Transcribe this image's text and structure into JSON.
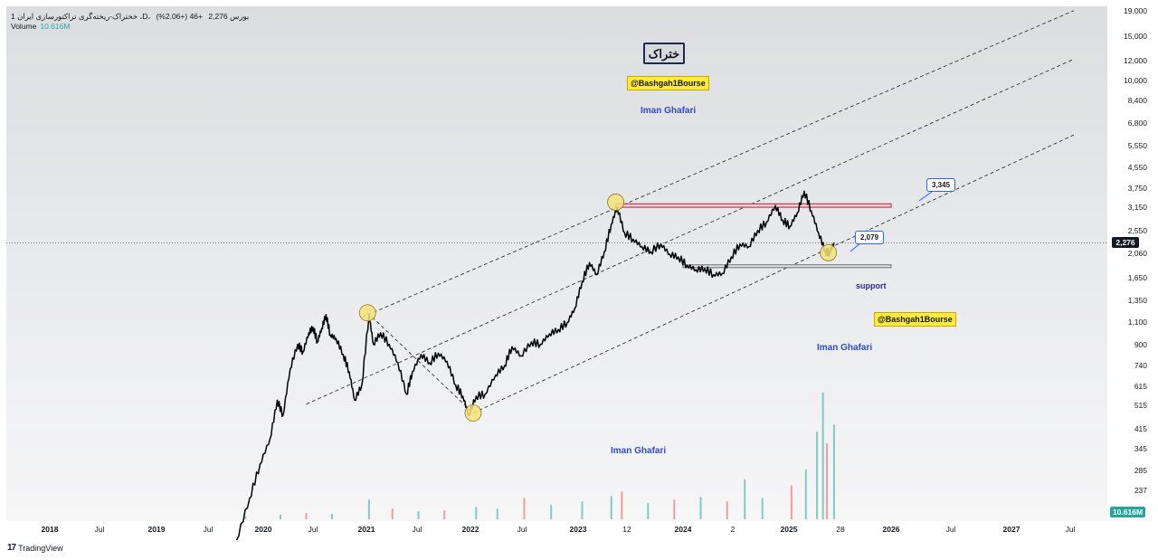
{
  "legend": {
    "symbol_line": "1 خختراک-ریخته‌گری تراکتورسازی ایران ،D، بورس",
    "price": "2,276",
    "change": "+46 (+2.06%)",
    "volume_label": "Volume",
    "volume_value": "10.616M"
  },
  "annotations": {
    "title_badge": "ختراک",
    "channel_tag": "@Bashgah1Bourse",
    "author": "Iman Ghafari",
    "support_label": "support",
    "callout_upper": "3,345",
    "callout_lower": "2,079"
  },
  "branding": {
    "logo_mark": "17",
    "logo_text": "TradingView"
  },
  "colors": {
    "price_line": "#000000",
    "resistance_zone": "#b71c3c",
    "support_zone": "#6b6b6b",
    "channel_line": "#333333",
    "pivot_marker": "#f5e27a",
    "volume_up": "#26a69a",
    "volume_down": "#ef5350",
    "author_text": "#2f49c9",
    "last_price_bg": "#131722",
    "volume_tag_bg": "#26a69a"
  },
  "chart_data": {
    "type": "line",
    "scale": "log",
    "x_axis_ticks": [
      "2018",
      "Jul",
      "2019",
      "Jul",
      "2020",
      "Jul",
      "2021",
      "Jul",
      "2022",
      "Jul",
      "2023",
      "12",
      "2024",
      "2",
      "2025",
      "28",
      "2026",
      "Jul",
      "2027",
      "Jul"
    ],
    "y_axis_ticks": [
      "19,000",
      "15,000",
      "12,000",
      "10,000",
      "8,400",
      "6,800",
      "5,550",
      "4,550",
      "3,750",
      "3,150",
      "2,550",
      "2,060",
      "1,650",
      "1,350",
      "1,100",
      "900",
      "740",
      "615",
      "515",
      "415",
      "345",
      "285",
      "237"
    ],
    "last_price": "2,276",
    "volume_last": "10.616M",
    "series": [
      {
        "values": [
          [
            "2019-10-01",
            150
          ],
          [
            "2019-11-15",
            220
          ],
          [
            "2019-12-20",
            300
          ],
          [
            "2020-01-25",
            380
          ],
          [
            "2020-02-20",
            540
          ],
          [
            "2020-03-10",
            470
          ],
          [
            "2020-04-05",
            720
          ],
          [
            "2020-05-01",
            900
          ],
          [
            "2020-05-20",
            840
          ],
          [
            "2020-06-10",
            1000
          ],
          [
            "2020-06-25",
            1050
          ],
          [
            "2020-07-10",
            920
          ],
          [
            "2020-07-25",
            1040
          ],
          [
            "2020-08-10",
            1180
          ],
          [
            "2020-08-25",
            980
          ],
          [
            "2020-09-15",
            950
          ],
          [
            "2020-10-10",
            820
          ],
          [
            "2020-11-01",
            700
          ],
          [
            "2020-11-20",
            540
          ],
          [
            "2020-12-15",
            620
          ],
          [
            "2021-01-10",
            1180
          ],
          [
            "2021-01-25",
            900
          ],
          [
            "2021-02-20",
            1000
          ],
          [
            "2021-03-20",
            900
          ],
          [
            "2021-04-20",
            760
          ],
          [
            "2021-05-20",
            570
          ],
          [
            "2021-06-10",
            700
          ],
          [
            "2021-07-10",
            820
          ],
          [
            "2021-08-10",
            760
          ],
          [
            "2021-09-10",
            830
          ],
          [
            "2021-10-10",
            770
          ],
          [
            "2021-11-10",
            620
          ],
          [
            "2021-12-05",
            560
          ],
          [
            "2021-12-25",
            470
          ],
          [
            "2022-01-20",
            560
          ],
          [
            "2022-02-20",
            570
          ],
          [
            "2022-03-25",
            680
          ],
          [
            "2022-04-25",
            740
          ],
          [
            "2022-05-20",
            880
          ],
          [
            "2022-06-20",
            810
          ],
          [
            "2022-07-25",
            920
          ],
          [
            "2022-08-25",
            900
          ],
          [
            "2022-09-25",
            990
          ],
          [
            "2022-10-25",
            1030
          ],
          [
            "2022-11-25",
            1100
          ],
          [
            "2022-12-20",
            1250
          ],
          [
            "2023-01-15",
            1600
          ],
          [
            "2023-02-10",
            1900
          ],
          [
            "2023-03-05",
            1700
          ],
          [
            "2023-04-01",
            2100
          ],
          [
            "2023-04-25",
            2700
          ],
          [
            "2023-05-15",
            3150
          ],
          [
            "2023-06-10",
            2500
          ],
          [
            "2023-07-10",
            2350
          ],
          [
            "2023-08-10",
            2200
          ],
          [
            "2023-09-10",
            2100
          ],
          [
            "2023-10-15",
            2250
          ],
          [
            "2023-11-15",
            2050
          ],
          [
            "2023-12-15",
            2000
          ],
          [
            "2024-01-15",
            1850
          ],
          [
            "2024-02-15",
            1780
          ],
          [
            "2024-03-15",
            1800
          ],
          [
            "2024-04-15",
            1700
          ],
          [
            "2024-05-15",
            1720
          ],
          [
            "2024-06-15",
            2000
          ],
          [
            "2024-07-15",
            2250
          ],
          [
            "2024-08-15",
            2200
          ],
          [
            "2024-09-15",
            2550
          ],
          [
            "2024-10-15",
            2750
          ],
          [
            "2024-11-15",
            3200
          ],
          [
            "2024-12-10",
            2800
          ],
          [
            "2025-01-05",
            2650
          ],
          [
            "2025-02-01",
            3000
          ],
          [
            "2025-02-25",
            3650
          ],
          [
            "2025-03-20",
            3050
          ],
          [
            "2025-04-15",
            2500
          ],
          [
            "2025-05-10",
            2100
          ],
          [
            "2025-05-25",
            2080
          ],
          [
            "2025-06-10",
            2276
          ]
        ]
      }
    ],
    "pivots": [
      [
        "2021-01-05",
        1200
      ],
      [
        "2022-01-10",
        480
      ],
      [
        "2023-05-10",
        3300
      ],
      [
        "2025-05-20",
        2079
      ]
    ],
    "channel_lines": [
      {
        "from": [
          "2020-12-15",
          1150
        ],
        "to": [
          "2027-08-01",
          19000
        ]
      },
      {
        "from": [
          "2020-06-01",
          520
        ],
        "to": [
          "2027-08-01",
          12200
        ]
      },
      {
        "from": [
          "2022-01-10",
          480
        ],
        "to": [
          "2027-08-01",
          6100
        ]
      }
    ],
    "resistance_zone": {
      "from": "2023-05-10",
      "to": "2026-01-01",
      "low": 3150,
      "high": 3250
    },
    "support_zone": {
      "from": "2024-01-01",
      "to": "2026-01-01",
      "low": 1820,
      "high": 1860
    },
    "volume": [
      [
        "2019-11-01",
        0.3,
        "up"
      ],
      [
        "2020-03-01",
        0.5,
        "up"
      ],
      [
        "2020-06-01",
        0.7,
        "down"
      ],
      [
        "2020-09-01",
        0.6,
        "up"
      ],
      [
        "2021-01-10",
        2.2,
        "up"
      ],
      [
        "2021-04-01",
        1.2,
        "down"
      ],
      [
        "2021-07-01",
        0.9,
        "up"
      ],
      [
        "2021-10-01",
        1.0,
        "down"
      ],
      [
        "2022-01-20",
        1.4,
        "up"
      ],
      [
        "2022-04-01",
        1.2,
        "up"
      ],
      [
        "2022-07-01",
        2.4,
        "down"
      ],
      [
        "2022-10-01",
        1.6,
        "up"
      ],
      [
        "2023-01-15",
        2.0,
        "up"
      ],
      [
        "2023-04-25",
        2.6,
        "up"
      ],
      [
        "2023-06-01",
        3.1,
        "down"
      ],
      [
        "2023-09-01",
        1.8,
        "up"
      ],
      [
        "2023-12-01",
        2.2,
        "down"
      ],
      [
        "2024-03-01",
        2.5,
        "up"
      ],
      [
        "2024-06-01",
        2.0,
        "down"
      ],
      [
        "2024-08-01",
        4.5,
        "up"
      ],
      [
        "2024-10-01",
        2.4,
        "up"
      ],
      [
        "2025-01-10",
        3.8,
        "down"
      ],
      [
        "2025-03-01",
        5.6,
        "up"
      ],
      [
        "2025-04-10",
        9.8,
        "up"
      ],
      [
        "2025-05-01",
        14.2,
        "up"
      ],
      [
        "2025-05-15",
        8.5,
        "down"
      ],
      [
        "2025-06-10",
        10.616,
        "up"
      ]
    ]
  }
}
